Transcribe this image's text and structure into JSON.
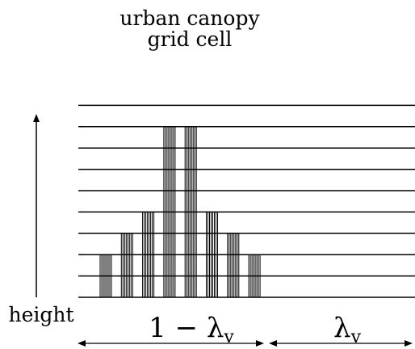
{
  "diagram": {
    "title_line1": "urban canopy",
    "title_line2": "grid cell",
    "height_label": "height",
    "fraction_left": "1 − λ",
    "fraction_left_sub": "v",
    "fraction_right": "λ",
    "fraction_right_sub": "v"
  },
  "colors": {
    "ink": "#000000",
    "background": "#ffffff"
  },
  "buildings": [
    {
      "levels": 2
    },
    {
      "levels": 3
    },
    {
      "levels": 4
    },
    {
      "levels": 8
    },
    {
      "levels": 8
    },
    {
      "levels": 4
    },
    {
      "levels": 3
    },
    {
      "levels": 2
    }
  ],
  "height_levels": 10
}
